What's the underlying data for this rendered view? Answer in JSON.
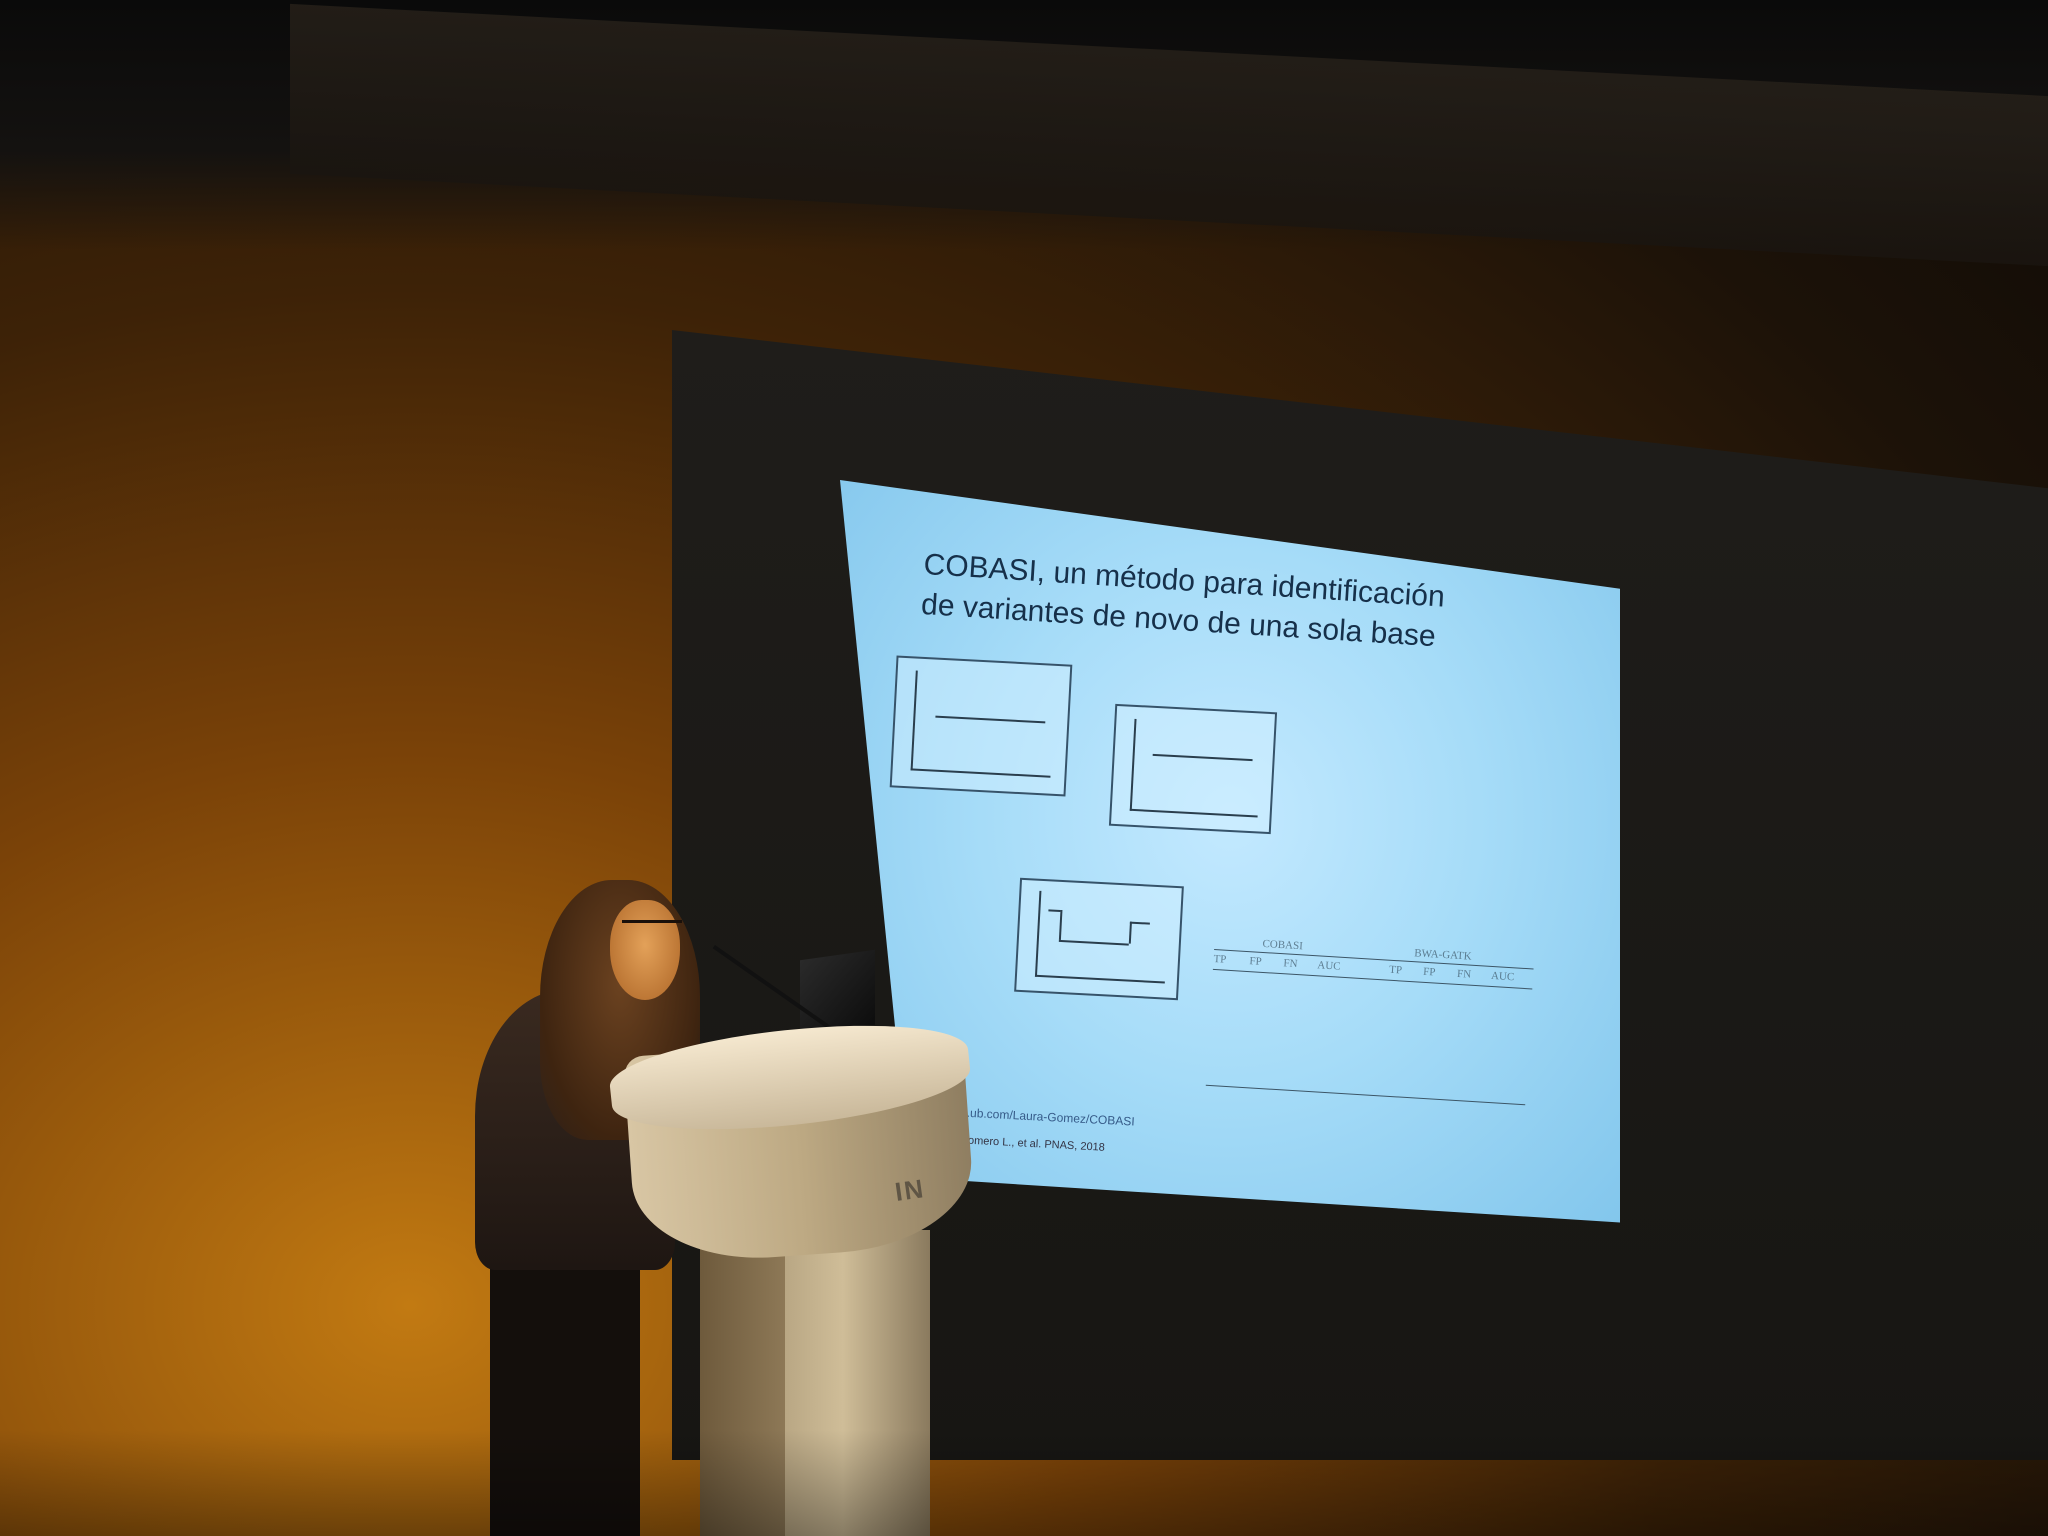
{
  "slide": {
    "title_lines": [
      "COBASI, un método para identificación",
      "de variantes de novo de una sola base"
    ],
    "table_group_1": "COBASI",
    "table_group_2": "BWA-GATK",
    "table_headers": [
      "TP",
      "FP",
      "FN",
      "AUC",
      "TP",
      "FP",
      "FN",
      "AUC"
    ],
    "footer_link": "...ub.com/Laura-Gomez/COBASI",
    "footer_reference": "Romero L., et al. PNAS, 2018"
  },
  "podium": {
    "sign_text": "IN"
  },
  "colors": {
    "stage_light": "#c27a12",
    "slide_background": "#a6dcf8",
    "slide_text": "#16304a",
    "podium": "#d8c6a4"
  }
}
